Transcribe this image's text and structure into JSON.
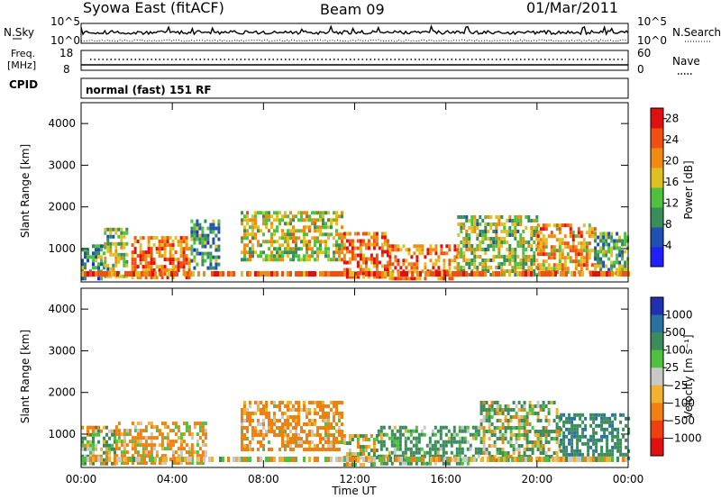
{
  "header": {
    "station": "Syowa East (fitACF)",
    "beam": "Beam 09",
    "date": "01/Mar/2011"
  },
  "summary": {
    "nsky_label": "N.Sky",
    "nsky_ticks": [
      "10^5",
      "10^0"
    ],
    "nsearch_label": "N.Search",
    "nsearch_ticks": [
      "10^5",
      "10^0"
    ],
    "freq_label_line1": "Freq.",
    "freq_label_line2": "[MHz]",
    "freq_ticks": [
      "18",
      "8"
    ],
    "nave_label": "Nave",
    "nave_ticks": [
      "60",
      "0"
    ],
    "cpid_label": "CPID",
    "cpid_value": "normal (fast) 151 RF"
  },
  "colors": {
    "power_scale": [
      "#2020ff",
      "#2050b0",
      "#3a8c5a",
      "#50c040",
      "#e0c020",
      "#f08a10",
      "#f05010",
      "#e01010"
    ],
    "velocity_scale": [
      "#e01010",
      "#f04010",
      "#f08010",
      "#f0b030",
      "#c8c8c8",
      "#50c040",
      "#3a8c5a",
      "#2a70a0",
      "#2030b0"
    ]
  },
  "chart_data": [
    {
      "type": "heatmap",
      "name": "power",
      "ylabel": "Slant Range [km]",
      "yticks": [
        "1000",
        "2000",
        "3000",
        "4000"
      ],
      "ylim": [
        200,
        4500
      ],
      "colorbar_label": "Power [dB]",
      "colorbar_ticks": [
        "4",
        "8",
        "12",
        "16",
        "20",
        "24",
        "28"
      ],
      "colorbar_range": [
        0,
        30
      ],
      "summary_regions": [
        {
          "t": [
            0.0,
            1.0
          ],
          "range": [
            300,
            1100
          ],
          "level": 10
        },
        {
          "t": [
            1.0,
            2.0
          ],
          "range": [
            300,
            1500
          ],
          "level": 14
        },
        {
          "t": [
            2.2,
            4.8
          ],
          "range": [
            300,
            1300
          ],
          "level": 22
        },
        {
          "t": [
            4.8,
            6.0
          ],
          "range": [
            500,
            1700
          ],
          "level": 10
        },
        {
          "t": [
            7.0,
            11.5
          ],
          "range": [
            700,
            1900
          ],
          "level": 16
        },
        {
          "t": [
            11.5,
            13.5
          ],
          "range": [
            300,
            1400
          ],
          "level": 24
        },
        {
          "t": [
            13.5,
            16.5
          ],
          "range": [
            300,
            1100
          ],
          "level": 22
        },
        {
          "t": [
            16.5,
            20.0
          ],
          "range": [
            400,
            1800
          ],
          "level": 14
        },
        {
          "t": [
            20.0,
            22.5
          ],
          "range": [
            400,
            1600
          ],
          "level": 20
        },
        {
          "t": [
            22.5,
            24.0
          ],
          "range": [
            400,
            1400
          ],
          "level": 12
        }
      ]
    },
    {
      "type": "heatmap",
      "name": "velocity",
      "ylabel": "Slant Range [km]",
      "yticks": [
        "1000",
        "2000",
        "3000",
        "4000"
      ],
      "ylim": [
        200,
        4500
      ],
      "xlabel": "Time UT",
      "xticks": [
        "00:00",
        "04:00",
        "08:00",
        "12:00",
        "16:00",
        "20:00",
        "00:00"
      ],
      "xlim": [
        0,
        24
      ],
      "colorbar_label": "Velocity [m s⁻¹]",
      "colorbar_ticks": [
        "1000",
        "500",
        "100",
        "25",
        "−25",
        "−100",
        "−500",
        "−1000"
      ],
      "summary_regions": [
        {
          "t": [
            0.0,
            1.5
          ],
          "range": [
            300,
            1200
          ],
          "velocity": 50
        },
        {
          "t": [
            1.5,
            5.5
          ],
          "range": [
            300,
            1300
          ],
          "velocity": -150
        },
        {
          "t": [
            7.0,
            11.5
          ],
          "range": [
            600,
            1800
          ],
          "velocity": -200
        },
        {
          "t": [
            11.5,
            13.0
          ],
          "range": [
            300,
            1000
          ],
          "velocity": 0
        },
        {
          "t": [
            13.0,
            17.5
          ],
          "range": [
            300,
            1200
          ],
          "velocity": 200
        },
        {
          "t": [
            17.5,
            21.0
          ],
          "range": [
            400,
            1800
          ],
          "velocity": 100
        },
        {
          "t": [
            21.0,
            24.0
          ],
          "range": [
            400,
            1500
          ],
          "velocity": 400
        }
      ]
    }
  ]
}
